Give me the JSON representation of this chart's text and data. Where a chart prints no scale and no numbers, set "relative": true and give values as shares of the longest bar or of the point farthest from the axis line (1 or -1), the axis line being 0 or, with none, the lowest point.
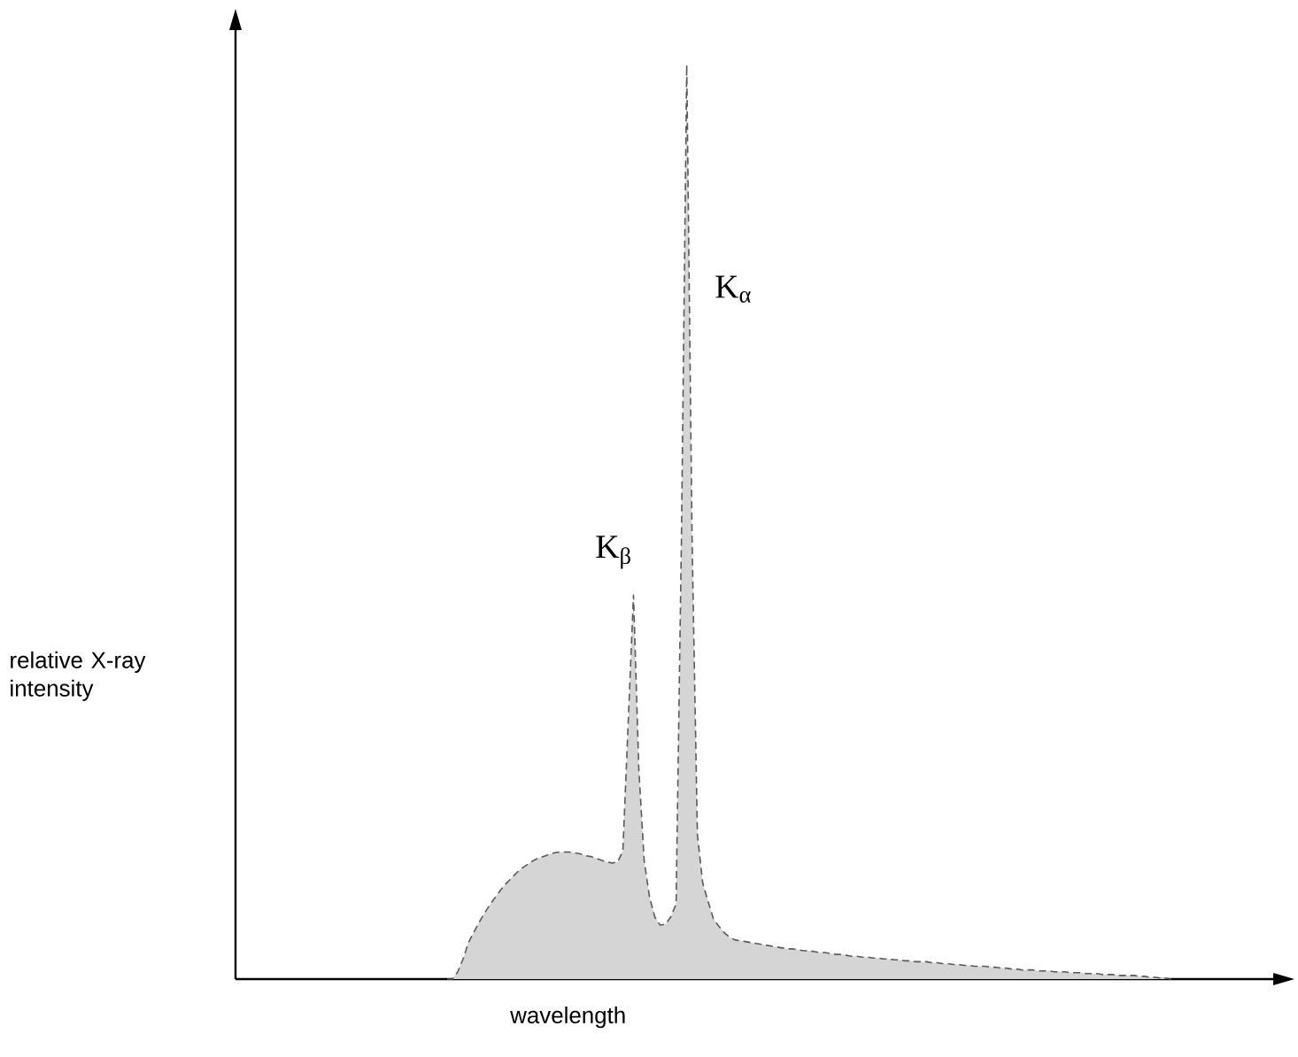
{
  "chart_data": {
    "type": "area",
    "relative": true,
    "xlabel": "wavelength",
    "color": "#595959",
    "line_style": "dashed",
    "categories": [
      null,
      null,
      null,
      null,
      null,
      null,
      null,
      null,
      null,
      null,
      null,
      null,
      null,
      null,
      null,
      null,
      null,
      null,
      null,
      null,
      null,
      null,
      null,
      null,
      null,
      null,
      null,
      null,
      null,
      null,
      null,
      null,
      null,
      null,
      null,
      null,
      null,
      null,
      null,
      null,
      null,
      null,
      null,
      null,
      null,
      null,
      null,
      null,
      null,
      null,
      null,
      null,
      null,
      null,
      null,
      null,
      null,
      null,
      null,
      null,
      null,
      null,
      null,
      null,
      null,
      null,
      null,
      null,
      null,
      null,
      null,
      null,
      null,
      null,
      null,
      null,
      null,
      null,
      null,
      null,
      null,
      null,
      null,
      null,
      null,
      null,
      null,
      null,
      null,
      null,
      null,
      null,
      null,
      null,
      null,
      null,
      null,
      null,
      null,
      null,
      null,
      null,
      null,
      null,
      null,
      null,
      null,
      null,
      null,
      null,
      null,
      null,
      null,
      null,
      null,
      null,
      null,
      null,
      null,
      null,
      null,
      null,
      null,
      null,
      null,
      null,
      null,
      null,
      null,
      null,
      null,
      null,
      null,
      null,
      null,
      null,
      null
    ],
    "values": [
      0,
      0,
      0.008,
      0.022,
      0.04,
      0.051,
      0.062,
      0.072,
      0.081,
      0.089,
      0.097,
      0.104,
      0.11,
      0.116,
      0.121,
      0.125,
      0.129,
      0.132,
      0.134,
      0.136,
      0.138,
      0.139,
      0.139,
      0.139,
      0.138,
      0.137,
      0.135,
      0.134,
      0.132,
      0.13,
      0.128,
      0.127,
      0.128,
      0.14,
      0.28,
      0.42,
      0.23,
      0.13,
      0.09,
      0.068,
      0.059,
      0.06,
      0.068,
      0.082,
      0.481,
      1,
      0.481,
      0.158,
      0.105,
      0.085,
      0.066,
      0.058,
      0.051,
      0.046,
      0.043,
      0.042,
      0.041,
      0.04,
      0.039,
      0.038,
      0.037,
      0.036,
      0.035,
      0.034,
      0.033,
      0.033,
      0.032,
      0.031,
      0.031,
      0.03,
      0.029,
      0.029,
      0.028,
      0.027,
      0.027,
      0.026,
      0.025,
      0.025,
      0.024,
      0.024,
      0.023,
      0.023,
      0.022,
      0.022,
      0.021,
      0.021,
      0.02,
      0.02,
      0.019,
      0.019,
      0.019,
      0.018,
      0.018,
      0.017,
      0.017,
      0.016,
      0.016,
      0.015,
      0.015,
      0.014,
      0.014,
      0.014,
      0.013,
      0.013,
      0.012,
      0.012,
      0.011,
      0.011,
      0.01,
      0.01,
      0.01,
      0.009,
      0.009,
      0.009,
      0.008,
      0.008,
      0.008,
      0.007,
      0.007,
      0.007,
      0.006,
      0.006,
      0.006,
      0.005,
      0.005,
      0.005,
      0.004,
      0.004,
      0.004,
      0.004,
      0.003,
      0.003,
      0.002,
      0.002,
      0.001,
      0.001,
      0
    ],
    "annotations": [
      "K$_{α}$",
      "K$_{β}$",
      "relative X-ray intensity"
    ]
  }
}
